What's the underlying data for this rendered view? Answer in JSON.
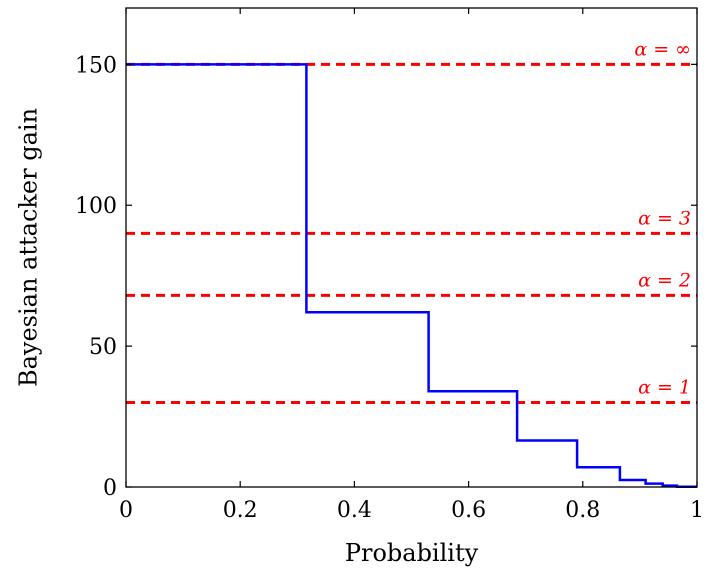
{
  "chart_data": {
    "type": "line",
    "title": "",
    "xlabel": "Probability",
    "ylabel": "Bayesian attacker gain",
    "xlim": [
      0,
      1
    ],
    "ylim": [
      0,
      170
    ],
    "x_ticks": [
      0,
      0.2,
      0.4,
      0.6,
      0.8,
      1
    ],
    "x_tick_labels": [
      "0",
      "0.2",
      "0.4",
      "0.6",
      "0.8",
      "1"
    ],
    "y_ticks": [
      0,
      50,
      100,
      150
    ],
    "y_tick_labels": [
      "0",
      "50",
      "100",
      "150"
    ],
    "grid": false,
    "series": [
      {
        "style": "step",
        "color": "#0000ff",
        "points": [
          [
            0,
            150
          ],
          [
            0.316,
            150
          ],
          [
            0.316,
            62
          ],
          [
            0.53,
            62
          ],
          [
            0.53,
            34
          ],
          [
            0.685,
            34
          ],
          [
            0.685,
            16.5
          ],
          [
            0.79,
            16.5
          ],
          [
            0.79,
            7
          ],
          [
            0.865,
            7
          ],
          [
            0.865,
            2.5
          ],
          [
            0.91,
            2.5
          ],
          [
            0.91,
            1.2
          ],
          [
            0.94,
            1.2
          ],
          [
            0.94,
            0.5
          ],
          [
            0.965,
            0.5
          ],
          [
            0.965,
            0.1
          ],
          [
            1,
            0.1
          ]
        ]
      }
    ],
    "reference_lines": [
      {
        "label": "α = ∞",
        "y": 150,
        "color": "#ff0000",
        "dash": "dashed"
      },
      {
        "label": "α = 3",
        "y": 90,
        "color": "#ff0000",
        "dash": "dashed"
      },
      {
        "label": "α = 2",
        "y": 68,
        "color": "#ff0000",
        "dash": "dashed"
      },
      {
        "label": "α = 1",
        "y": 30,
        "color": "#ff0000",
        "dash": "dashed"
      }
    ]
  }
}
